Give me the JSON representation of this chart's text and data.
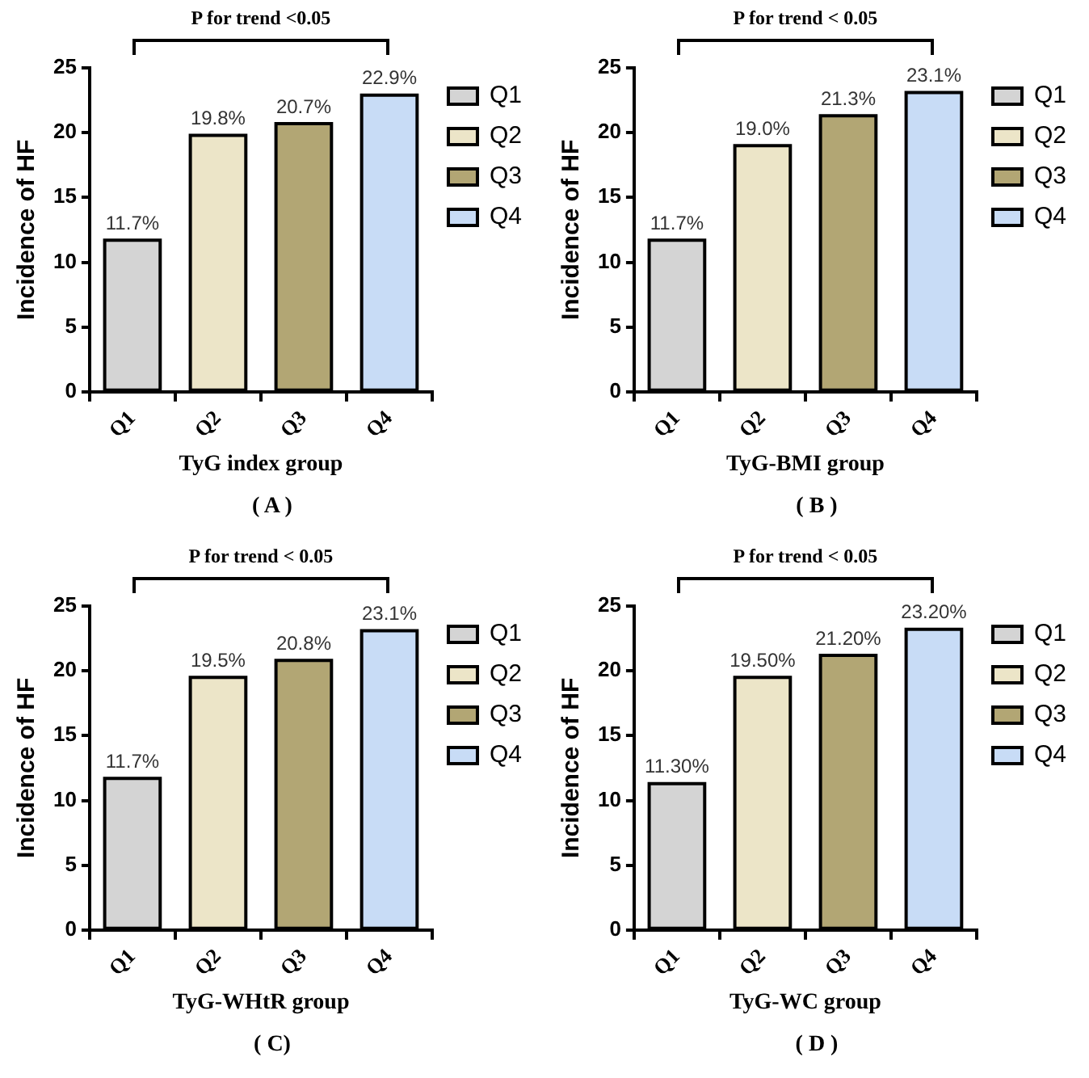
{
  "chart_data": [
    {
      "type": "bar",
      "xlabel": "TyG index group",
      "ylabel": "Incidence of HF",
      "categories": [
        "Q1",
        "Q2",
        "Q3",
        "Q4"
      ],
      "series": [
        {
          "name": "Q1",
          "color": "#d4d4d4",
          "values": [
            11.7,
            null,
            null,
            null
          ],
          "value_labels": [
            "11.7%",
            null,
            null,
            null
          ]
        },
        {
          "name": "Q2",
          "color": "#ece5c8",
          "values": [
            null,
            19.8,
            null,
            null
          ],
          "value_labels": [
            null,
            "19.8%",
            null,
            null
          ]
        },
        {
          "name": "Q3",
          "color": "#b2a674",
          "values": [
            null,
            null,
            20.7,
            null
          ],
          "value_labels": [
            null,
            null,
            "20.7%",
            null
          ]
        },
        {
          "name": "Q4",
          "color": "#c8dcf6",
          "values": [
            null,
            null,
            null,
            22.9
          ],
          "value_labels": [
            null,
            null,
            null,
            "22.9%"
          ]
        }
      ],
      "ylim": [
        0,
        25
      ],
      "yticks": [
        0,
        5,
        10,
        15,
        20,
        25
      ],
      "grid": false,
      "legend": "right",
      "annotations": [
        "P for trend <0.05",
        "( A )"
      ]
    },
    {
      "type": "bar",
      "xlabel": "TyG-BMI group",
      "ylabel": "Incidence of HF",
      "categories": [
        "Q1",
        "Q2",
        "Q3",
        "Q4"
      ],
      "series": [
        {
          "name": "Q1",
          "color": "#d4d4d4",
          "values": [
            11.7,
            null,
            null,
            null
          ],
          "value_labels": [
            "11.7%",
            null,
            null,
            null
          ]
        },
        {
          "name": "Q2",
          "color": "#ece5c8",
          "values": [
            null,
            19.0,
            null,
            null
          ],
          "value_labels": [
            null,
            "19.0%",
            null,
            null
          ]
        },
        {
          "name": "Q3",
          "color": "#b2a674",
          "values": [
            null,
            null,
            21.3,
            null
          ],
          "value_labels": [
            null,
            null,
            "21.3%",
            null
          ]
        },
        {
          "name": "Q4",
          "color": "#c8dcf6",
          "values": [
            null,
            null,
            null,
            23.1
          ],
          "value_labels": [
            null,
            null,
            null,
            "23.1%"
          ]
        }
      ],
      "ylim": [
        0,
        25
      ],
      "yticks": [
        0,
        5,
        10,
        15,
        20,
        25
      ],
      "grid": false,
      "legend": "right",
      "annotations": [
        "P for trend < 0.05",
        "( B )"
      ]
    },
    {
      "type": "bar",
      "xlabel": "TyG-WHtR group",
      "ylabel": "Incidence of HF",
      "categories": [
        "Q1",
        "Q2",
        "Q3",
        "Q4"
      ],
      "series": [
        {
          "name": "Q1",
          "color": "#d4d4d4",
          "values": [
            11.7,
            null,
            null,
            null
          ],
          "value_labels": [
            "11.7%",
            null,
            null,
            null
          ]
        },
        {
          "name": "Q2",
          "color": "#ece5c8",
          "values": [
            null,
            19.5,
            null,
            null
          ],
          "value_labels": [
            null,
            "19.5%",
            null,
            null
          ]
        },
        {
          "name": "Q3",
          "color": "#b2a674",
          "values": [
            null,
            null,
            20.8,
            null
          ],
          "value_labels": [
            null,
            null,
            "20.8%",
            null
          ]
        },
        {
          "name": "Q4",
          "color": "#c8dcf6",
          "values": [
            null,
            null,
            null,
            23.1
          ],
          "value_labels": [
            null,
            null,
            null,
            "23.1%"
          ]
        }
      ],
      "ylim": [
        0,
        25
      ],
      "yticks": [
        0,
        5,
        10,
        15,
        20,
        25
      ],
      "grid": false,
      "legend": "right",
      "annotations": [
        "P for trend < 0.05",
        "( C)"
      ]
    },
    {
      "type": "bar",
      "xlabel": "TyG-WC group",
      "ylabel": "Incidence of HF",
      "categories": [
        "Q1",
        "Q2",
        "Q3",
        "Q4"
      ],
      "series": [
        {
          "name": "Q1",
          "color": "#d4d4d4",
          "values": [
            11.3,
            null,
            null,
            null
          ],
          "value_labels": [
            "11.30%",
            null,
            null,
            null
          ]
        },
        {
          "name": "Q2",
          "color": "#ece5c8",
          "values": [
            null,
            19.5,
            null,
            null
          ],
          "value_labels": [
            null,
            "19.50%",
            null,
            null
          ]
        },
        {
          "name": "Q3",
          "color": "#b2a674",
          "values": [
            null,
            null,
            21.2,
            null
          ],
          "value_labels": [
            null,
            null,
            "21.20%",
            null
          ]
        },
        {
          "name": "Q4",
          "color": "#c8dcf6",
          "values": [
            null,
            null,
            null,
            23.2
          ],
          "value_labels": [
            null,
            null,
            null,
            "23.20%"
          ]
        }
      ],
      "ylim": [
        0,
        25
      ],
      "yticks": [
        0,
        5,
        10,
        15,
        20,
        25
      ],
      "grid": false,
      "legend": "right",
      "annotations": [
        "P for trend < 0.05",
        "( D )"
      ]
    }
  ]
}
